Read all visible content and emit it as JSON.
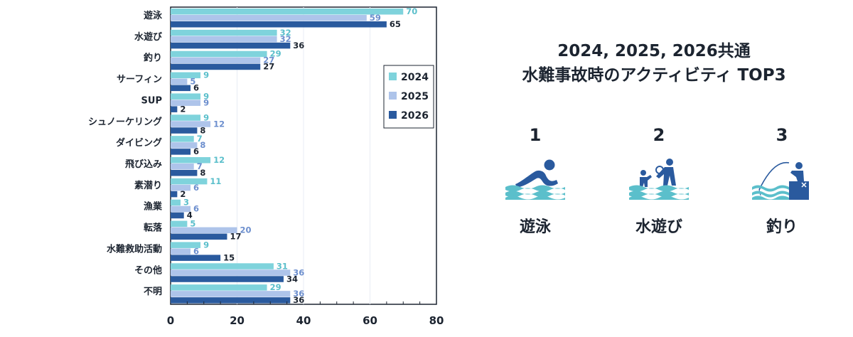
{
  "chart_data": {
    "type": "bar",
    "orientation": "horizontal",
    "categories": [
      "遊泳",
      "水遊び",
      "釣り",
      "サーフィン",
      "SUP",
      "シュノーケリング",
      "ダイビング",
      "飛び込み",
      "素潜り",
      "漁業",
      "転落",
      "水難救助活動",
      "その他",
      "不明"
    ],
    "series": [
      {
        "name": "2024",
        "color": "#7fd3dc",
        "label_color": "#5bbfcb",
        "values": [
          70,
          32,
          29,
          9,
          9,
          9,
          7,
          12,
          11,
          3,
          5,
          9,
          31,
          29
        ]
      },
      {
        "name": "2025",
        "color": "#aec4ea",
        "label_color": "#6d8fce",
        "values": [
          59,
          32,
          27,
          5,
          9,
          12,
          8,
          7,
          6,
          6,
          20,
          6,
          36,
          36
        ]
      },
      {
        "name": "2026",
        "color": "#2a5a9e",
        "label_color": "#1c2430",
        "values": [
          65,
          36,
          27,
          6,
          2,
          8,
          6,
          8,
          2,
          4,
          17,
          15,
          34,
          36
        ]
      }
    ],
    "xlim": [
      0,
      80
    ],
    "xticks": [
      0,
      20,
      40,
      60,
      80
    ],
    "grid": true,
    "legend": "right"
  },
  "top3": {
    "title_line1": "2024, 2025, 2026共通",
    "title_line2": "水難事故時のアクティビティ TOP3",
    "items": [
      {
        "rank": "1",
        "name": "遊泳",
        "icon": "swimmer-icon"
      },
      {
        "rank": "2",
        "name": "水遊び",
        "icon": "water-play-icon"
      },
      {
        "rank": "3",
        "name": "釣り",
        "icon": "fishing-icon"
      }
    ],
    "icon_color": "#2a5a9e",
    "wave_color": "#5bbfcb"
  }
}
